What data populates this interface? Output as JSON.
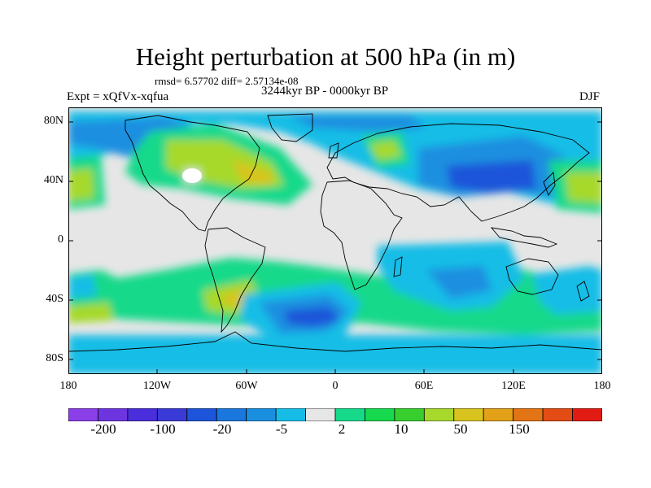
{
  "title": "Height perturbation at 500 hPa (in m)",
  "stats_line": "rmsd= 6.57702 diff= 2.57134e-08",
  "experiment": "Expt = xQfVx-xqfua",
  "period": "3244kyr BP - 0000kyr BP",
  "season": "DJF",
  "lat_labels": [
    "80N",
    "40N",
    "0",
    "40S",
    "80S"
  ],
  "lon_labels": [
    "180",
    "120W",
    "60W",
    "0",
    "60E",
    "120E",
    "180"
  ],
  "colorbar_labels": [
    "-200",
    "-100",
    "-20",
    "-5",
    "2",
    "10",
    "50",
    "150"
  ],
  "colors": {
    "neg4": "#4a3fd1",
    "neg3": "#1c55d9",
    "neg2": "#1a8fe0",
    "neg1": "#15bde6",
    "zero": "#e6e6e6",
    "pos1": "#17d98a",
    "pos2": "#38cf2e",
    "pos3": "#a6d92c",
    "pos4": "#d9c41f",
    "coast": "#000000"
  },
  "colorbar_colors": [
    "#8a3fe8",
    "#6d35e0",
    "#4a2ddb",
    "#3a3bd6",
    "#1c55d9",
    "#1a77dd",
    "#1a8fe0",
    "#15bde6",
    "#e6e6e6",
    "#17d98a",
    "#17d94e",
    "#38cf2e",
    "#a6d92c",
    "#d9c41f",
    "#e3a019",
    "#e37415",
    "#e34c15",
    "#e31b15"
  ]
}
